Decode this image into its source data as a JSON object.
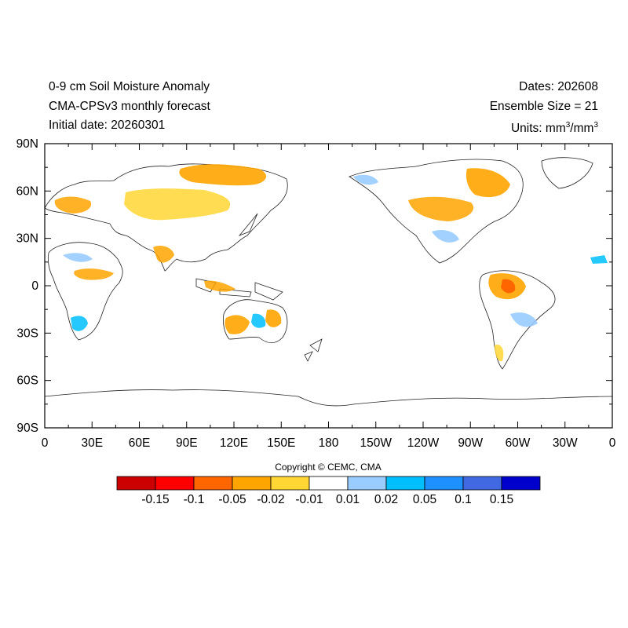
{
  "header": {
    "title": "0-9 cm Soil Moisture Anomaly",
    "model": "CMA-CPSv3 monthly forecast",
    "initial_date": "Initial date: 20260301",
    "dates": "Dates: 202608",
    "ensemble": "Ensemble Size = 21",
    "units_prefix": "Units: mm",
    "units_mid": "/mm",
    "units_exp": "3"
  },
  "axes": {
    "y_ticks": [
      "90N",
      "60N",
      "30N",
      "0",
      "30S",
      "60S",
      "90S"
    ],
    "x_ticks": [
      "0",
      "30E",
      "60E",
      "90E",
      "120E",
      "150E",
      "180",
      "150W",
      "120W",
      "90W",
      "60W",
      "30W",
      "0"
    ],
    "lat_range": [
      -90,
      90
    ],
    "lon_range": [
      0,
      360
    ]
  },
  "copyright": "Copyright © CEMC, CMA",
  "colorbar": {
    "colors": [
      "#cc0000",
      "#ff0000",
      "#ff6600",
      "#ffa500",
      "#ffd633",
      "#ffffff",
      "#99ccff",
      "#00bfff",
      "#1e90ff",
      "#4169e1",
      "#0000cc"
    ],
    "labels": [
      "-0.15",
      "-0.1",
      "-0.05",
      "-0.02",
      "-0.01",
      "0.01",
      "0.02",
      "0.05",
      "0.1",
      "0.15"
    ]
  }
}
